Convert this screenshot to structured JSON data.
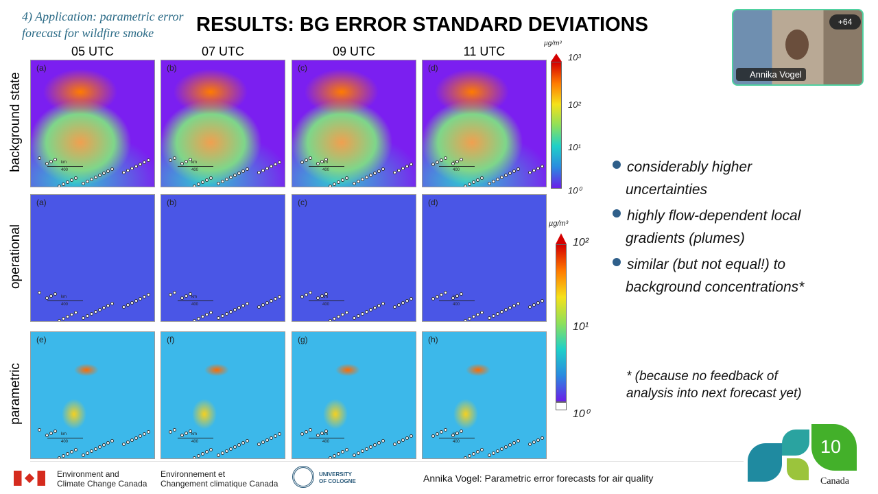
{
  "slide": {
    "section": [
      "4) Application: parametric error",
      "forecast for wildfire smoke"
    ],
    "title": "RESULTS: BG ERROR STANDARD DEVIATIONS",
    "columns": [
      "05 UTC",
      "07 UTC",
      "09 UTC",
      "11 UTC"
    ],
    "rows": [
      {
        "label": "background state",
        "panels": [
          "(a)",
          "(b)",
          "(c)",
          "(d)"
        ]
      },
      {
        "label": "operational",
        "panels": [
          "(a)",
          "(b)",
          "(c)",
          "(d)"
        ]
      },
      {
        "label": "parametric",
        "panels": [
          "(e)",
          "(f)",
          "(g)",
          "(h)"
        ]
      }
    ],
    "map_scale": {
      "unit": "km",
      "length": "400"
    },
    "colorbar_top": {
      "unit": "µg/m³",
      "ticks": [
        "10³",
        "10²",
        "10¹",
        "10⁰"
      ]
    },
    "colorbar_bottom": {
      "unit": "µg/m³",
      "ticks": [
        "10²",
        "10¹",
        "10⁰"
      ]
    },
    "bullets": [
      [
        "considerably higher",
        "uncertainties"
      ],
      [
        "highly flow-dependent local",
        "gradients (plumes)"
      ],
      [
        "similar (but not equal!) to",
        "background concentrations*"
      ]
    ],
    "footnote": [
      "* (because no feedback of",
      "analysis into next forecast yet)"
    ],
    "footer": {
      "eccc_en": [
        "Environment and",
        "Climate Change Canada"
      ],
      "eccc_fr": [
        "Environnement et",
        "Changement climatique Canada"
      ],
      "university": [
        "UNIVERSITY",
        "OF COLOGNE"
      ],
      "caption": "Annika Vogel: Parametric error forecasts for air quality",
      "slide_number": "10",
      "wordmark": "Canada"
    }
  },
  "call": {
    "participants": "+64",
    "speaker": "Annika Vogel"
  }
}
